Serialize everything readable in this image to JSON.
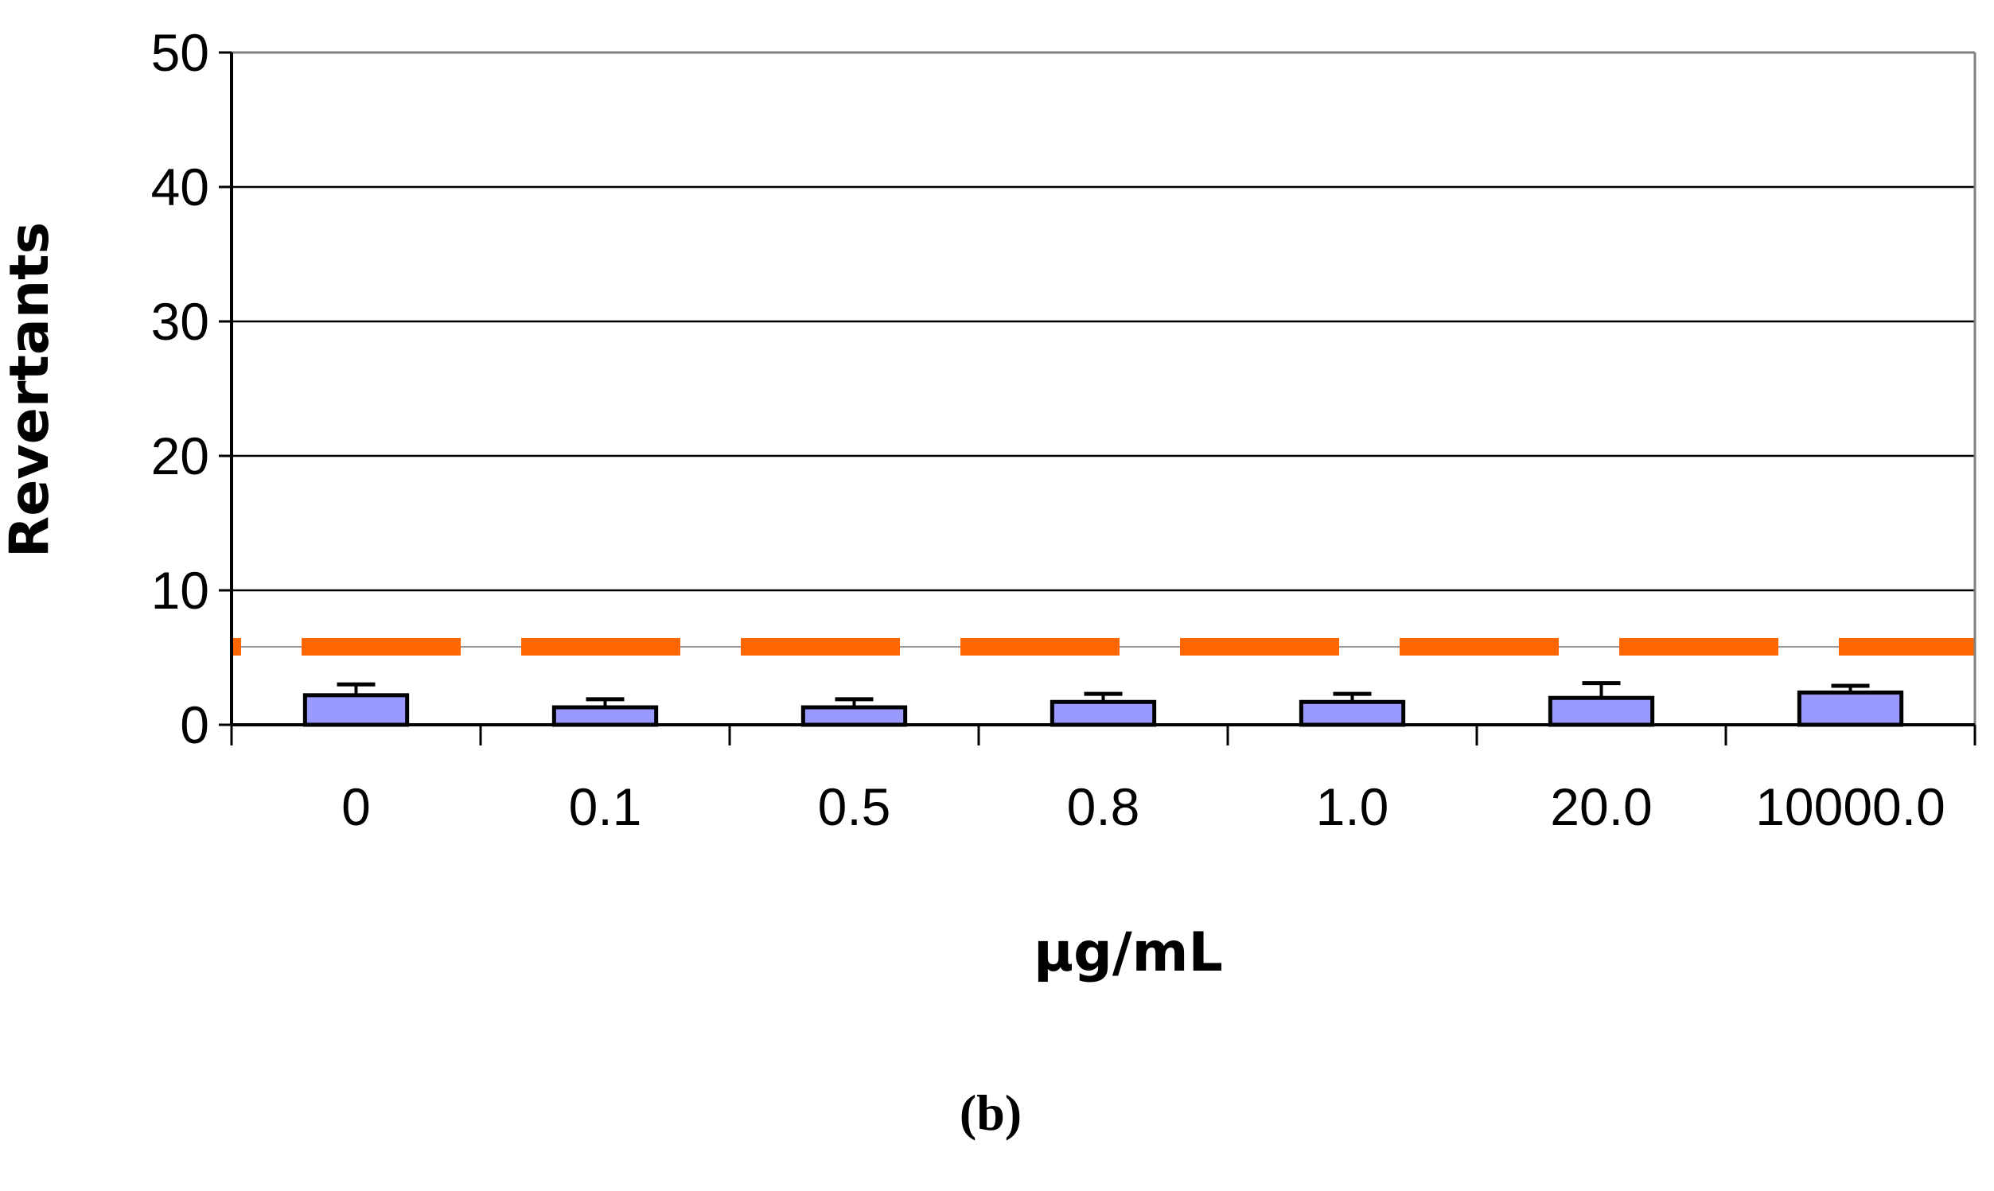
{
  "chart_data": {
    "type": "bar",
    "categories": [
      "0",
      "0.1",
      "0.5",
      "0.8",
      "1.0",
      "20.0",
      "10000.0"
    ],
    "series": [
      {
        "values": [
          2.2,
          1.3,
          1.3,
          1.7,
          1.7,
          2.0,
          2.4
        ],
        "error": [
          0.8,
          0.6,
          0.6,
          0.6,
          0.6,
          1.1,
          0.5
        ],
        "color": "#9999ff"
      }
    ],
    "reference_line": {
      "value": 5.8,
      "style": "dashed",
      "color": "#ff6600"
    },
    "xlabel": "µg/mL",
    "ylabel": "Revertants",
    "ylim": [
      0,
      50
    ],
    "yticks": [
      "0",
      "10",
      "20",
      "30",
      "40",
      "50"
    ],
    "grid": "horizontal",
    "panel_label": "(b)"
  }
}
